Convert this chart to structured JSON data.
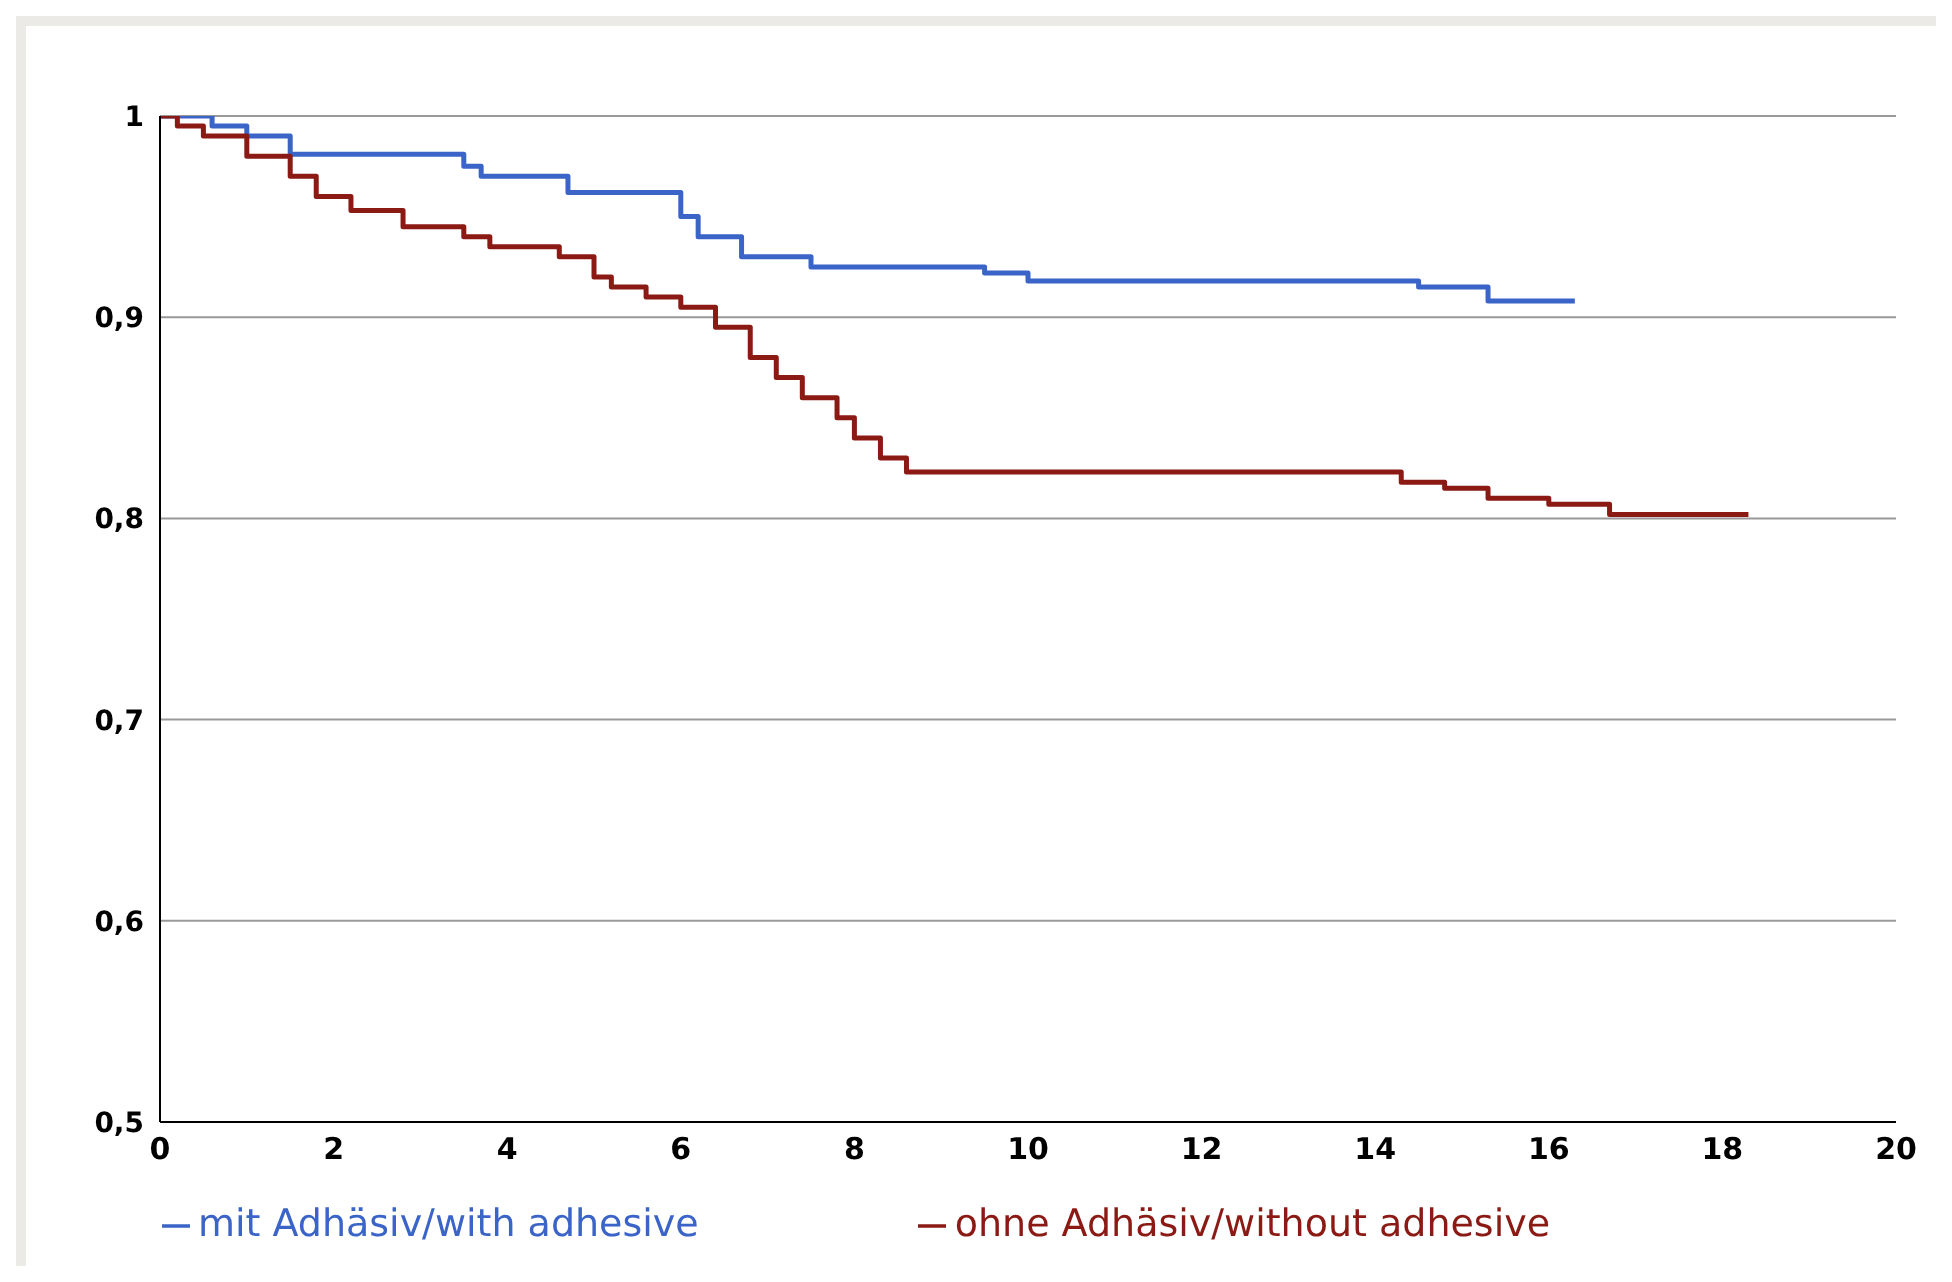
{
  "chart_data": {
    "type": "step",
    "xlim": [
      0,
      20
    ],
    "xticks": [
      0,
      2,
      4,
      6,
      8,
      10,
      12,
      14,
      16,
      18,
      20
    ],
    "ylim": [
      0.5,
      1
    ],
    "yticks": [
      {
        "value": 0.5,
        "label": "0,5"
      },
      {
        "value": 0.6,
        "label": "0,6"
      },
      {
        "value": 0.7,
        "label": "0,7"
      },
      {
        "value": 0.8,
        "label": "0,8"
      },
      {
        "value": 0.9,
        "label": "0,9"
      },
      {
        "value": 1,
        "label": "1"
      }
    ],
    "grid": "y",
    "legend": "bottom",
    "marker": "none",
    "line_style": "solid",
    "series": [
      {
        "name": "mit Adhäsiv/with adhesive",
        "color": "#3b64c8",
        "x": [
          0,
          0.6,
          1,
          1.5,
          3.5,
          3.7,
          4.7,
          6,
          6.2,
          6.7,
          7.5,
          9.5,
          10,
          14.5,
          15.3,
          16.3
        ],
        "values": [
          1,
          0.995,
          0.99,
          0.981,
          0.975,
          0.97,
          0.962,
          0.95,
          0.94,
          0.93,
          0.925,
          0.922,
          0.918,
          0.915,
          0.908,
          0.908
        ]
      },
      {
        "name": "ohne Adhäsiv/without adhesive",
        "color": "#8b1a14",
        "x": [
          0,
          0.2,
          0.5,
          1,
          1.5,
          1.8,
          2.2,
          2.8,
          3.5,
          3.8,
          4.6,
          5,
          5.2,
          5.6,
          6,
          6.4,
          6.8,
          7.1,
          7.4,
          7.8,
          8,
          8.3,
          8.6,
          14,
          14.3,
          14.8,
          15.3,
          16,
          16.7,
          18.3
        ],
        "values": [
          1,
          0.995,
          0.99,
          0.98,
          0.97,
          0.96,
          0.953,
          0.945,
          0.94,
          0.935,
          0.93,
          0.92,
          0.915,
          0.91,
          0.905,
          0.895,
          0.88,
          0.87,
          0.86,
          0.85,
          0.84,
          0.83,
          0.823,
          0.823,
          0.818,
          0.815,
          0.81,
          0.807,
          0.802,
          0.802
        ]
      }
    ]
  }
}
